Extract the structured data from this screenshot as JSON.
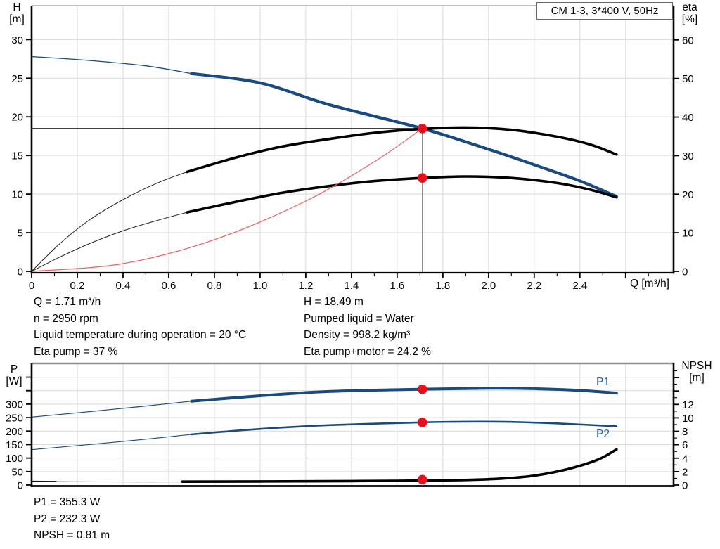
{
  "title_box": "CM 1-3, 3*400 V, 50Hz",
  "axis_labels": {
    "h_1": "H",
    "h_2": "[m]",
    "eta_1": "eta",
    "eta_2": "[%]",
    "q": "Q [m³/h]",
    "p_1": "P",
    "p_2": "[W]",
    "npsh_1": "NPSH",
    "npsh_2": "[m]"
  },
  "info_left": [
    "Q = 1.71 m³/h",
    "n = 2950 rpm",
    "Liquid temperature during operation = 20 °C",
    "Eta pump = 37 %"
  ],
  "info_right": [
    "H = 18.49 m",
    "Pumped liquid = Water",
    "Density = 998.2 kg/m³",
    "Eta pump+motor = 24.2 %"
  ],
  "info_power": [
    "P1 = 355.3 W",
    "P2 = 232.3 W",
    "NPSH = 0.81 m"
  ],
  "colors": {
    "curve_blue": "#1b4a7d",
    "series_label_blue": "#2a64a8",
    "marker_red": "#e8101c",
    "system_curve_red": "#ed5f5f",
    "grid": "#d9d9d9",
    "axis_black": "#000000",
    "reference_gray": "#8c8c8c",
    "npsh_faint_gray": "#b3b3b3",
    "top_border_gray": "#999999"
  },
  "chart_data": [
    {
      "type": "line",
      "title": "CM 1-3, 3*400 V, 50Hz",
      "x_axis": {
        "label": "Q [m³/h]",
        "min": 0,
        "max": 2.81,
        "major_ticks": [
          0,
          0.2,
          0.4,
          0.6,
          0.8,
          1,
          1.2,
          1.4,
          1.6,
          1.8,
          2,
          2.2,
          2.4,
          2.6
        ],
        "tick_labels": [
          "0",
          "0.2",
          "0.4",
          "0.6",
          "0.8",
          "1.0",
          "1.2",
          "1.4",
          "1.6",
          "1.8",
          "2.0",
          "2.2",
          "2.4"
        ],
        "minor_ticks": [
          0.1,
          0.3,
          0.5,
          0.7,
          0.9,
          1.1,
          1.3,
          1.5,
          1.7,
          1.9,
          2.1,
          2.3,
          2.5,
          2.7
        ],
        "grid": [
          0.2,
          0.4,
          0.6,
          0.8,
          1,
          1.2,
          1.4,
          1.6,
          1.8,
          2,
          2.2,
          2.4,
          2.6,
          2.8
        ]
      },
      "left_axis": {
        "label": "H [m]",
        "min": 0,
        "max": 34.4,
        "ticks": [
          0,
          5,
          10,
          15,
          20,
          25,
          30
        ],
        "tick_labels": [
          "0",
          "5",
          "10",
          "15",
          "20",
          "25",
          "30"
        ],
        "grid": [
          5,
          10,
          15,
          20,
          25,
          30
        ]
      },
      "right_axis": {
        "label": "eta [%]",
        "min": 0,
        "max": 68.9,
        "ticks": [
          0,
          10,
          20,
          30,
          40,
          50,
          60
        ],
        "tick_labels": [
          "0",
          "10",
          "20",
          "30",
          "40",
          "50",
          "60"
        ]
      },
      "series": [
        {
          "name": "head-curve-preview",
          "axis": "left",
          "color": "#1b4a7d",
          "width": 1.3,
          "points": [
            [
              0,
              27.8
            ],
            [
              0.25,
              27.3
            ],
            [
              0.5,
              26.6
            ],
            [
              0.7,
              25.6
            ]
          ]
        },
        {
          "name": "head-curve",
          "axis": "left",
          "color": "#1b4a7d",
          "width": 4.2,
          "points": [
            [
              0.7,
              25.6
            ],
            [
              1,
              24.4
            ],
            [
              1.3,
              21.6
            ],
            [
              1.71,
              18.49
            ],
            [
              2,
              15.8
            ],
            [
              2.2,
              13.8
            ],
            [
              2.4,
              11.7
            ],
            [
              2.56,
              9.7
            ]
          ]
        },
        {
          "name": "eta-pump-curve-preview",
          "axis": "right",
          "color": "#222222",
          "width": 1,
          "points": [
            [
              0,
              0
            ],
            [
              0.12,
              7
            ],
            [
              0.25,
              13.2
            ],
            [
              0.4,
              18.6
            ],
            [
              0.55,
              22.9
            ],
            [
              0.68,
              25.8
            ]
          ]
        },
        {
          "name": "eta-pump-curve",
          "axis": "right",
          "color": "#000000",
          "width": 3.6,
          "points": [
            [
              0.68,
              25.8
            ],
            [
              0.9,
              29.6
            ],
            [
              1.1,
              32.4
            ],
            [
              1.3,
              34.3
            ],
            [
              1.5,
              35.9
            ],
            [
              1.7,
              36.9
            ],
            [
              1.9,
              37.3
            ],
            [
              2.1,
              36.7
            ],
            [
              2.3,
              34.9
            ],
            [
              2.45,
              32.8
            ],
            [
              2.56,
              30.3
            ]
          ]
        },
        {
          "name": "eta-pump-motor-curve-preview",
          "axis": "right",
          "color": "#222222",
          "width": 1,
          "points": [
            [
              0,
              0
            ],
            [
              0.12,
              3.6
            ],
            [
              0.25,
              7.1
            ],
            [
              0.4,
              10.5
            ],
            [
              0.55,
              13.2
            ],
            [
              0.68,
              15.3
            ]
          ]
        },
        {
          "name": "eta-pump-motor-curve",
          "axis": "right",
          "color": "#000000",
          "width": 3.6,
          "points": [
            [
              0.68,
              15.3
            ],
            [
              0.9,
              18.1
            ],
            [
              1.1,
              20.4
            ],
            [
              1.3,
              22.1
            ],
            [
              1.5,
              23.4
            ],
            [
              1.71,
              24.2
            ],
            [
              1.9,
              24.6
            ],
            [
              2.1,
              24.2
            ],
            [
              2.3,
              22.9
            ],
            [
              2.45,
              21.1
            ],
            [
              2.56,
              19.2
            ]
          ]
        },
        {
          "name": "system-curve",
          "axis": "left",
          "color": "#ed5f5f",
          "width": 1.2,
          "points": [
            [
              0,
              0
            ],
            [
              0.4,
              1
            ],
            [
              0.8,
              4.1
            ],
            [
              1.2,
              9.1
            ],
            [
              1.5,
              14.2
            ],
            [
              1.71,
              18.49
            ]
          ]
        }
      ],
      "reference": {
        "q": 1.71,
        "h": 18.49
      },
      "markers": [
        {
          "q": 1.71,
          "value": 18.49,
          "axis": "left"
        },
        {
          "q": 1.71,
          "value": 24.2,
          "axis": "right"
        }
      ]
    },
    {
      "type": "line",
      "x_axis": {
        "min": 0,
        "max": 2.81,
        "grid": [
          0.2,
          0.4,
          0.6,
          0.8,
          1,
          1.2,
          1.4,
          1.6,
          1.8,
          2,
          2.2,
          2.4,
          2.6,
          2.8
        ]
      },
      "left_axis": {
        "label": "P [W]",
        "min": 0,
        "max": 451,
        "ticks": [
          0,
          50,
          100,
          150,
          200,
          250,
          300,
          350,
          400
        ],
        "tick_labels": [
          "0",
          "50",
          "100",
          "150",
          "200",
          "250",
          "300"
        ],
        "grid": [
          50,
          100,
          150,
          200,
          250,
          300,
          350,
          400
        ]
      },
      "right_axis": {
        "label": "NPSH [m]",
        "min": 0,
        "max": 18.1,
        "ticks": [
          0,
          2,
          4,
          6,
          8,
          10,
          12,
          14,
          16
        ],
        "tick_labels": [
          "0",
          "2",
          "4",
          "6",
          "8",
          "10",
          "12"
        ],
        "minor_ticks": [
          1,
          3,
          5,
          7,
          9,
          11,
          13,
          15,
          17
        ]
      },
      "series": [
        {
          "name": "p1-curve-preview",
          "axis": "left",
          "color": "#1b4a7d",
          "width": 1.2,
          "points": [
            [
              0,
              252
            ],
            [
              0.25,
              272
            ],
            [
              0.5,
              293
            ],
            [
              0.7,
              311
            ]
          ]
        },
        {
          "name": "p1-curve",
          "axis": "left",
          "color": "#1b4a7d",
          "width": 4,
          "label": "P1",
          "points": [
            [
              0.7,
              311
            ],
            [
              1,
              331
            ],
            [
              1.3,
              347
            ],
            [
              1.71,
              355.5
            ],
            [
              2,
              359
            ],
            [
              2.2,
              357.5
            ],
            [
              2.4,
              351
            ],
            [
              2.56,
              341
            ]
          ]
        },
        {
          "name": "p2-curve-preview",
          "axis": "left",
          "color": "#1b4a7d",
          "width": 1.1,
          "points": [
            [
              0,
              131
            ],
            [
              0.25,
              150
            ],
            [
              0.5,
              170
            ],
            [
              0.7,
              188
            ]
          ]
        },
        {
          "name": "p2-curve",
          "axis": "left",
          "color": "#1b4a7d",
          "width": 2.6,
          "label": "P2",
          "points": [
            [
              0.7,
              188
            ],
            [
              1,
              208
            ],
            [
              1.3,
              222
            ],
            [
              1.71,
              232.5
            ],
            [
              1.9,
              235
            ],
            [
              2.1,
              234
            ],
            [
              2.3,
              228.5
            ],
            [
              2.56,
              218
            ]
          ]
        },
        {
          "name": "npsh-curve-preview",
          "axis": "right",
          "color": "#111111",
          "width": 1.2,
          "points": [
            [
              0,
              0.58
            ],
            [
              0.11,
              0.55
            ]
          ]
        },
        {
          "name": "npsh-curve-faint",
          "axis": "right",
          "color": "#b3b3b3",
          "width": 1,
          "points": [
            [
              0.11,
              0.55
            ],
            [
              0.4,
              0.44
            ],
            [
              0.66,
              0.44
            ]
          ]
        },
        {
          "name": "npsh-curve",
          "axis": "right",
          "color": "#000000",
          "width": 3.6,
          "points": [
            [
              0.66,
              0.5
            ],
            [
              1,
              0.53
            ],
            [
              1.3,
              0.57
            ],
            [
              1.6,
              0.63
            ],
            [
              1.85,
              0.72
            ],
            [
              2.05,
              0.95
            ],
            [
              2.2,
              1.4
            ],
            [
              2.35,
              2.4
            ],
            [
              2.48,
              3.8
            ],
            [
              2.56,
              5.3
            ]
          ]
        }
      ],
      "markers": [
        {
          "q": 1.71,
          "value": 355.3,
          "axis": "left"
        },
        {
          "q": 1.71,
          "value": 232.3,
          "axis": "left"
        },
        {
          "q": 1.71,
          "value": 0.81,
          "axis": "right"
        }
      ]
    }
  ]
}
